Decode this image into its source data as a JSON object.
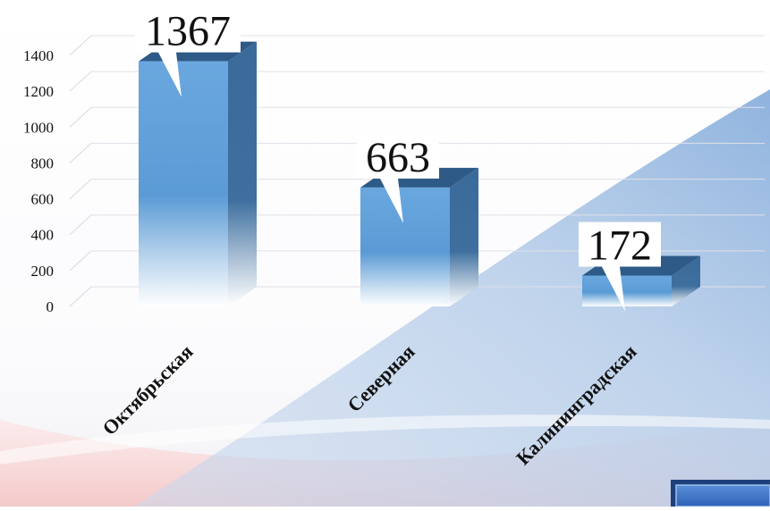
{
  "chart_data": {
    "type": "bar",
    "categories": [
      "Октябрьская",
      "Северная",
      "Калининградская"
    ],
    "values": [
      1367,
      663,
      172
    ],
    "data_labels": [
      "1367",
      "663",
      "172"
    ],
    "yticks": [
      "0",
      "200",
      "400",
      "600",
      "800",
      "1000",
      "1200",
      "1400"
    ],
    "ylim": [
      0,
      1400
    ],
    "grid": true,
    "legend": "none",
    "colors": {
      "bar_front": "#5b9bd5",
      "bar_side": "#3a6a99",
      "bar_top": "#2e5a87",
      "background_wave_blue": "#b9cfe8",
      "background_wave_pink": "#f6cfcf"
    }
  }
}
